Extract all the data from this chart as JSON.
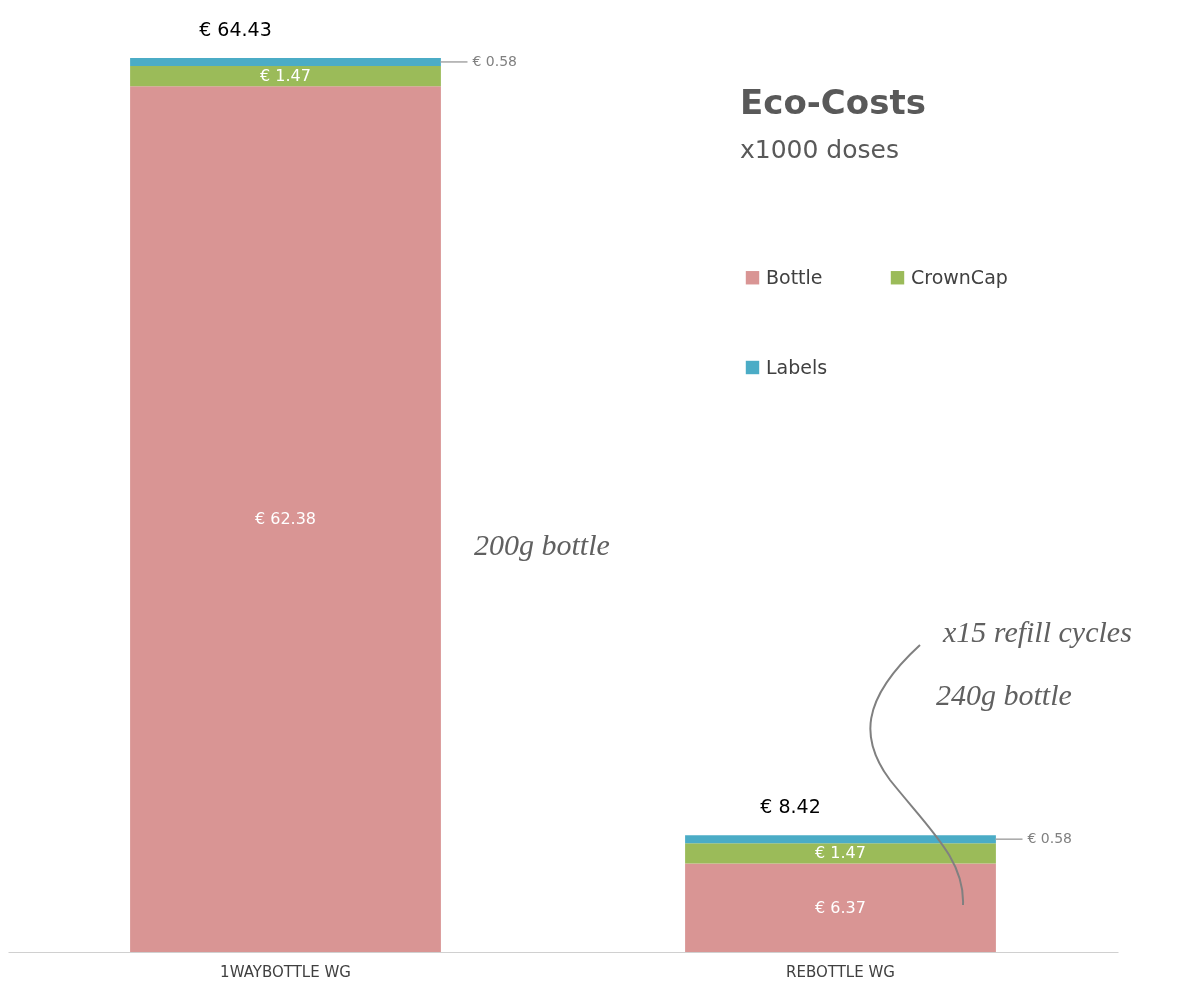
{
  "chart_data": {
    "type": "bar",
    "title": "Eco-Costs",
    "subtitle": "x1000 doses",
    "stacked": true,
    "legend": "top right",
    "categories": [
      "1WAYBOTTLE WG",
      "REBOTTLE WG"
    ],
    "series": [
      {
        "name": "Bottle",
        "color": "#d99594",
        "values": [
          62.38,
          6.37
        ],
        "value_labels": [
          "€ 62.38",
          "€ 6.37"
        ]
      },
      {
        "name": "CrownCap",
        "color": "#9bbb59",
        "values": [
          1.47,
          1.47
        ],
        "value_labels": [
          "€ 1.47",
          "€ 1.47"
        ]
      },
      {
        "name": "Labels",
        "color": "#4bacc6",
        "values": [
          0.58,
          0.58
        ],
        "value_labels": [
          "€ 0.58",
          "€ 0.58"
        ]
      }
    ],
    "totals": [
      "€ 64.43",
      "€ 8.42"
    ],
    "annotations": [
      "200g bottle",
      "x15 refill cycles",
      "240g bottle"
    ]
  }
}
